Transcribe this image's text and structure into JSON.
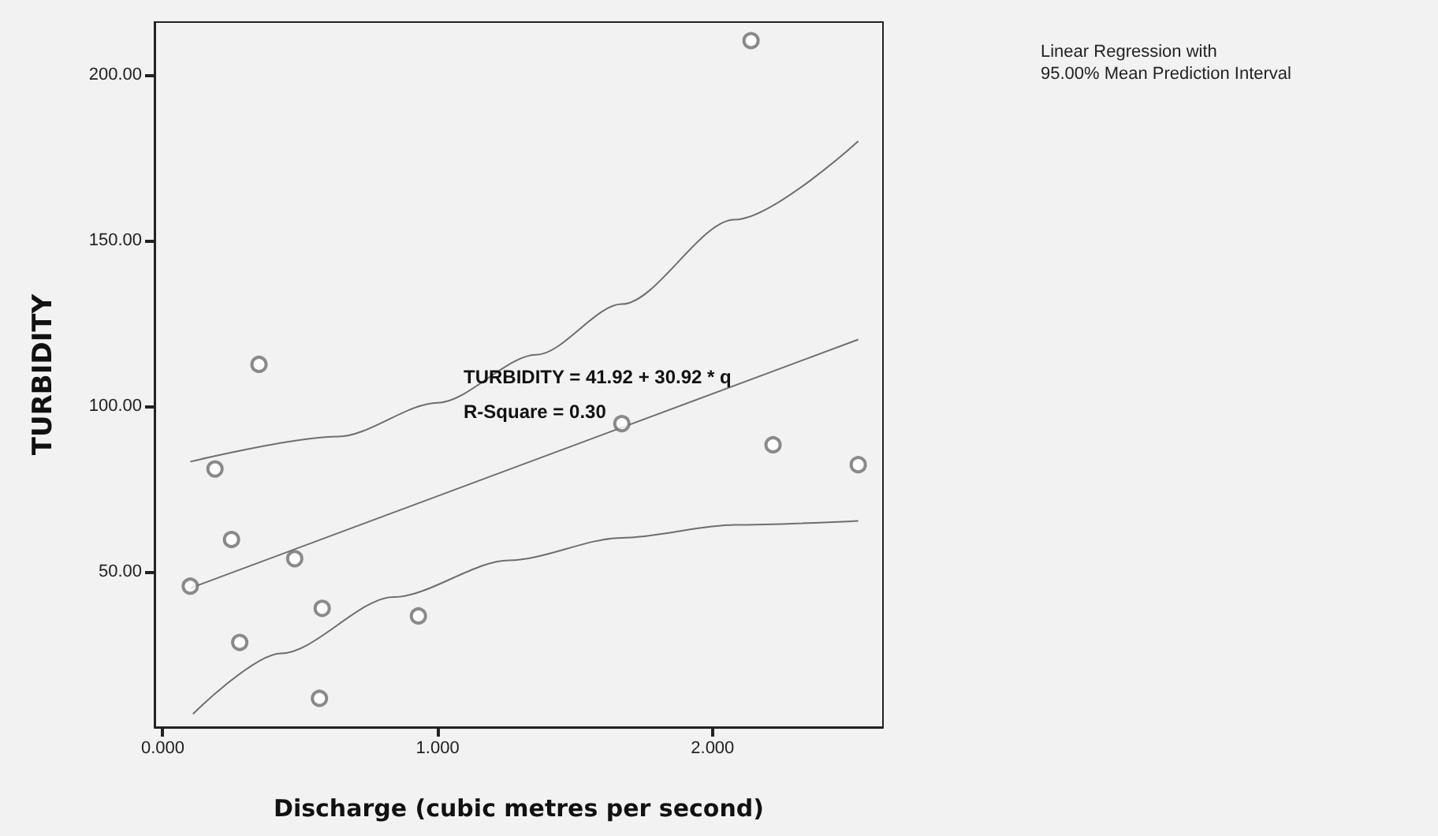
{
  "chart_data": {
    "type": "scatter",
    "xlabel": "Discharge (cubic metres per second)",
    "ylabel": "TURBIDITY",
    "xlim": [
      -0.03,
      2.62
    ],
    "ylim": [
      3,
      216
    ],
    "xticks": [
      {
        "value": 0,
        "label": "0.000"
      },
      {
        "value": 1,
        "label": "1.000"
      },
      {
        "value": 2,
        "label": "2.000"
      }
    ],
    "yticks": [
      {
        "value": 50,
        "label": "50.00"
      },
      {
        "value": 100,
        "label": "100.00"
      },
      {
        "value": 150,
        "label": "150.00"
      },
      {
        "value": 200,
        "label": "200.00"
      }
    ],
    "grid": false,
    "marker": "circle",
    "annotations": [
      "TURBIDITY = 41.92 + 30.92 * q\nR-Square = 0.30",
      "Linear Regression with\n95.00% Mean Prediction Interval"
    ],
    "series": [
      {
        "color": "#6e6e6e",
        "x": [
          2.14,
          0.35,
          0.19,
          0.25,
          0.48,
          0.1,
          0.58,
          0.93,
          0.28,
          0.57,
          1.67,
          2.22,
          2.53
        ],
        "values": [
          210.4,
          112.6,
          81,
          59.7,
          53.9,
          45.6,
          38.9,
          36.6,
          28.6,
          11.7,
          94.7,
          88.3,
          82.3
        ]
      },
      {
        "type": "line",
        "marker": "none",
        "color": "#6e6e6e",
        "x": [
          0.1,
          2.53
        ],
        "values": [
          45.0,
          120.1
        ]
      },
      {
        "type": "line",
        "marker": "none",
        "color": "#6e6e6e",
        "x": [
          0.1,
          0.64,
          1.0,
          1.36,
          1.67,
          2.08,
          2.53
        ],
        "values": [
          83.2,
          90.8,
          101,
          115.5,
          130.8,
          156.3,
          180
        ]
      },
      {
        "type": "line",
        "marker": "none",
        "color": "#6e6e6e",
        "x": [
          0.11,
          0.43,
          0.84,
          1.26,
          1.67,
          2.08,
          2.53
        ],
        "values": [
          7,
          25.3,
          42.3,
          53.4,
          60.2,
          64.1,
          65.3
        ]
      }
    ]
  }
}
